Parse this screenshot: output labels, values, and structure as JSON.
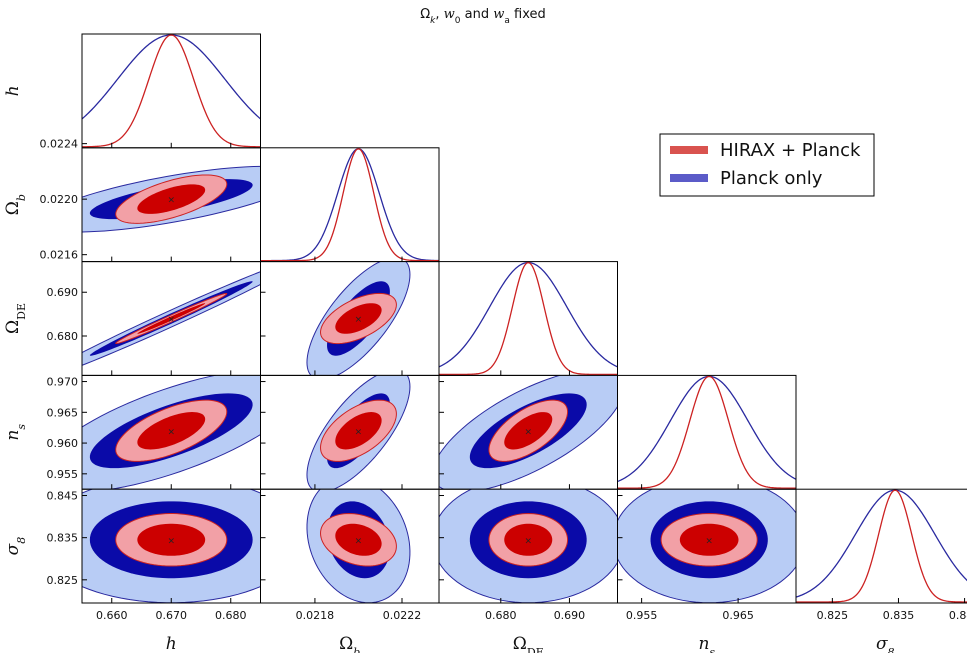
{
  "chart_data": {
    "type": "triangle-corner-plot",
    "title": "Ωk, w0 and wa fixed",
    "title_parts": [
      "Ω",
      "k",
      ", ",
      "w",
      "0",
      " and ",
      "w",
      "a",
      " fixed"
    ],
    "parameters": [
      {
        "key": "h",
        "label": "h",
        "sub": "",
        "center": 0.67,
        "range": [
          0.655,
          0.685
        ],
        "ticks": [
          "0.660",
          "0.670",
          "0.680"
        ]
      },
      {
        "key": "Ob",
        "label": "Ω",
        "sub": "b",
        "center": 0.022,
        "range": [
          0.02155,
          0.02237
        ],
        "ticks": [
          "0.0216",
          "0.0220",
          "0.0224"
        ],
        "xticks": [
          "0.0218",
          "0.0222"
        ]
      },
      {
        "key": "ODE",
        "label": "Ω",
        "sub": "DE",
        "center": 0.684,
        "range": [
          0.671,
          0.697
        ],
        "ticks": [
          "0.680",
          "0.690"
        ]
      },
      {
        "key": "ns",
        "label": "n",
        "sub": "s",
        "center": 0.962,
        "range": [
          0.9525,
          0.971
        ],
        "ticks": [
          "0.955",
          "0.960",
          "0.965",
          "0.970"
        ],
        "xticks": [
          "0.955",
          "0.965"
        ]
      },
      {
        "key": "s8",
        "label": "σ",
        "sub": "8",
        "center": 0.8345,
        "range": [
          0.8195,
          0.8465
        ],
        "ticks": [
          "0.825",
          "0.835",
          "0.845"
        ]
      }
    ],
    "series": [
      {
        "name": "HIRAX + Planck",
        "color_fill_1sigma": "#cc0000",
        "color_fill_2sigma": "#f2a0a6",
        "color_line": "#cc2222",
        "sigma": {
          "h": 0.00375,
          "Ob": 7e-05,
          "ODE": 0.0023,
          "ns": 0.002,
          "s8": 0.0025
        }
      },
      {
        "name": "Planck only",
        "color_fill_1sigma": "#0a0aa8",
        "color_fill_2sigma": "#b8ccf5",
        "color_line": "#2a2aa0",
        "sigma": {
          "h": 0.009,
          "Ob": 9.5e-05,
          "ODE": 0.0056,
          "ns": 0.004,
          "s8": 0.006
        }
      }
    ],
    "correlations": {
      "h|Ob": {
        "HIRAX + Planck": 0.62,
        "Planck only": 0.7
      },
      "h|ODE": {
        "HIRAX + Planck": 0.99,
        "Planck only": 0.99
      },
      "Ob|ODE": {
        "HIRAX + Planck": 0.55,
        "Planck only": 0.72
      },
      "h|ns": {
        "HIRAX + Planck": 0.62,
        "Planck only": 0.7
      },
      "Ob|ns": {
        "HIRAX + Planck": 0.55,
        "Planck only": 0.72
      },
      "ODE|ns": {
        "HIRAX + Planck": 0.62,
        "Planck only": 0.7
      },
      "h|s8": {
        "HIRAX + Planck": 0.0,
        "Planck only": 0.0
      },
      "Ob|s8": {
        "HIRAX + Planck": -0.25,
        "Planck only": -0.2
      },
      "ODE|s8": {
        "HIRAX + Planck": 0.0,
        "Planck only": 0.0
      },
      "ns|s8": {
        "HIRAX + Planck": 0.0,
        "Planck only": 0.0
      }
    },
    "fiducial_marker": "×",
    "legend": {
      "position": "right",
      "entries": [
        "HIRAX + Planck",
        "Planck only"
      ]
    },
    "grid": false
  }
}
